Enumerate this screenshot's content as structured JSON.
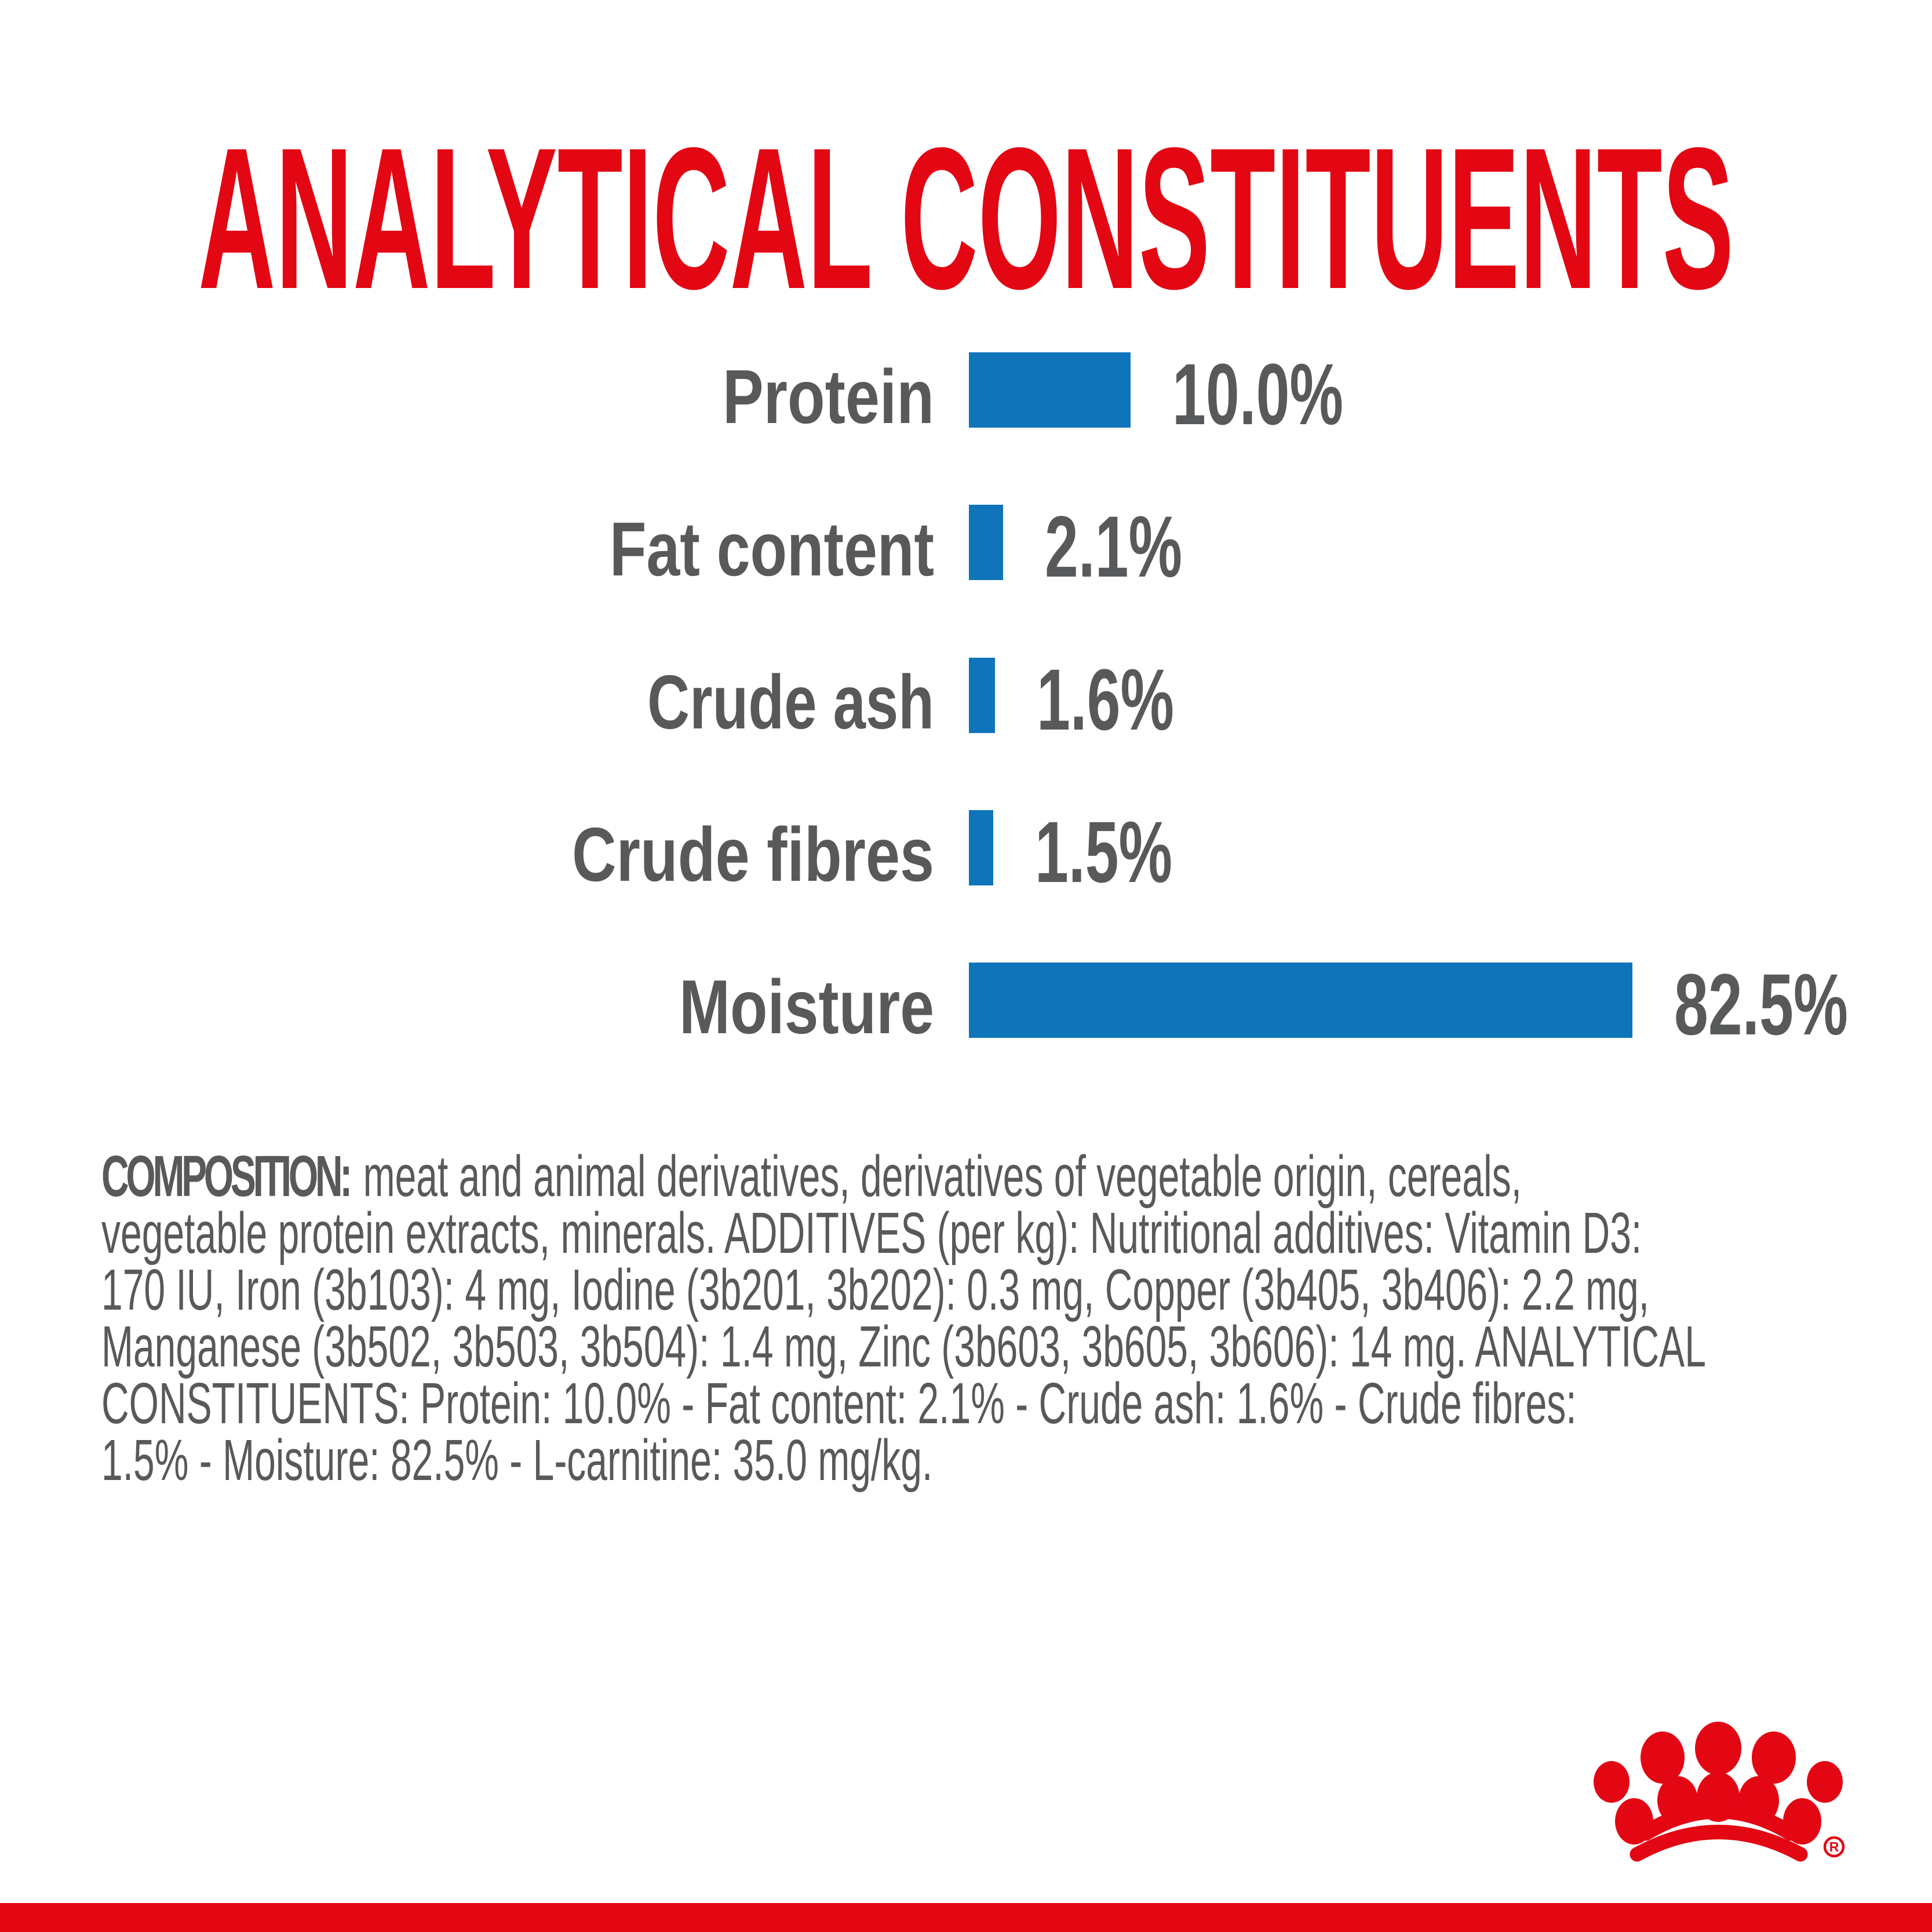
{
  "title": "ANALYTICAL CONSTITUENTS",
  "colors": {
    "brand_red": "#E30613",
    "bar_blue": "#0F74BA",
    "text_gray": "#58595B"
  },
  "chart_data": {
    "type": "bar",
    "orientation": "horizontal",
    "title": "ANALYTICAL CONSTITUENTS",
    "unit": "%",
    "grid": "off",
    "value_label_position": "right-of-bar",
    "categories": [
      "Protein",
      "Fat content",
      "Crude ash",
      "Crude fibres",
      "Moisture"
    ],
    "values": [
      10.0,
      2.1,
      1.6,
      1.5,
      82.5
    ],
    "rows": [
      {
        "label": "Protein",
        "value": 10.0,
        "value_label": "10.0%"
      },
      {
        "label": "Fat content",
        "value": 2.1,
        "value_label": "2.1%"
      },
      {
        "label": "Crude ash",
        "value": 1.6,
        "value_label": "1.6%"
      },
      {
        "label": "Crude fibres",
        "value": 1.5,
        "value_label": "1.5%"
      },
      {
        "label": "Moisture",
        "value": 82.5,
        "value_label": "82.5%"
      }
    ],
    "bar_color": "#0F74BA",
    "label_color": "#58595B",
    "note": "moisture bar truncated to fit layout width"
  },
  "composition": {
    "bold_lead": "COMPOSITION:",
    "lines": [
      " meat and animal derivatives, derivatives of vegetable origin, cereals,",
      "vegetable protein extracts, minerals. ADDITIVES (per kg): Nutritional additives: Vitamin D3:",
      "170 IU, Iron (3b103): 4 mg, Iodine (3b201, 3b202): 0.3 mg, Copper (3b405, 3b406): 2.2 mg,",
      "Manganese (3b502, 3b503, 3b504): 1.4 mg, Zinc (3b603, 3b605, 3b606): 14 mg. ANALYTICAL",
      "CONSTITUENTS: Protein: 10.0% - Fat content: 2.1% - Crude ash: 1.6% - Crude fibres:",
      "1.5% - Moisture: 82.5% - L-carnitine: 35.0 mg/kg."
    ]
  },
  "footer": {
    "brand_logo": "royal-canin-crown",
    "registered_mark": "R"
  }
}
